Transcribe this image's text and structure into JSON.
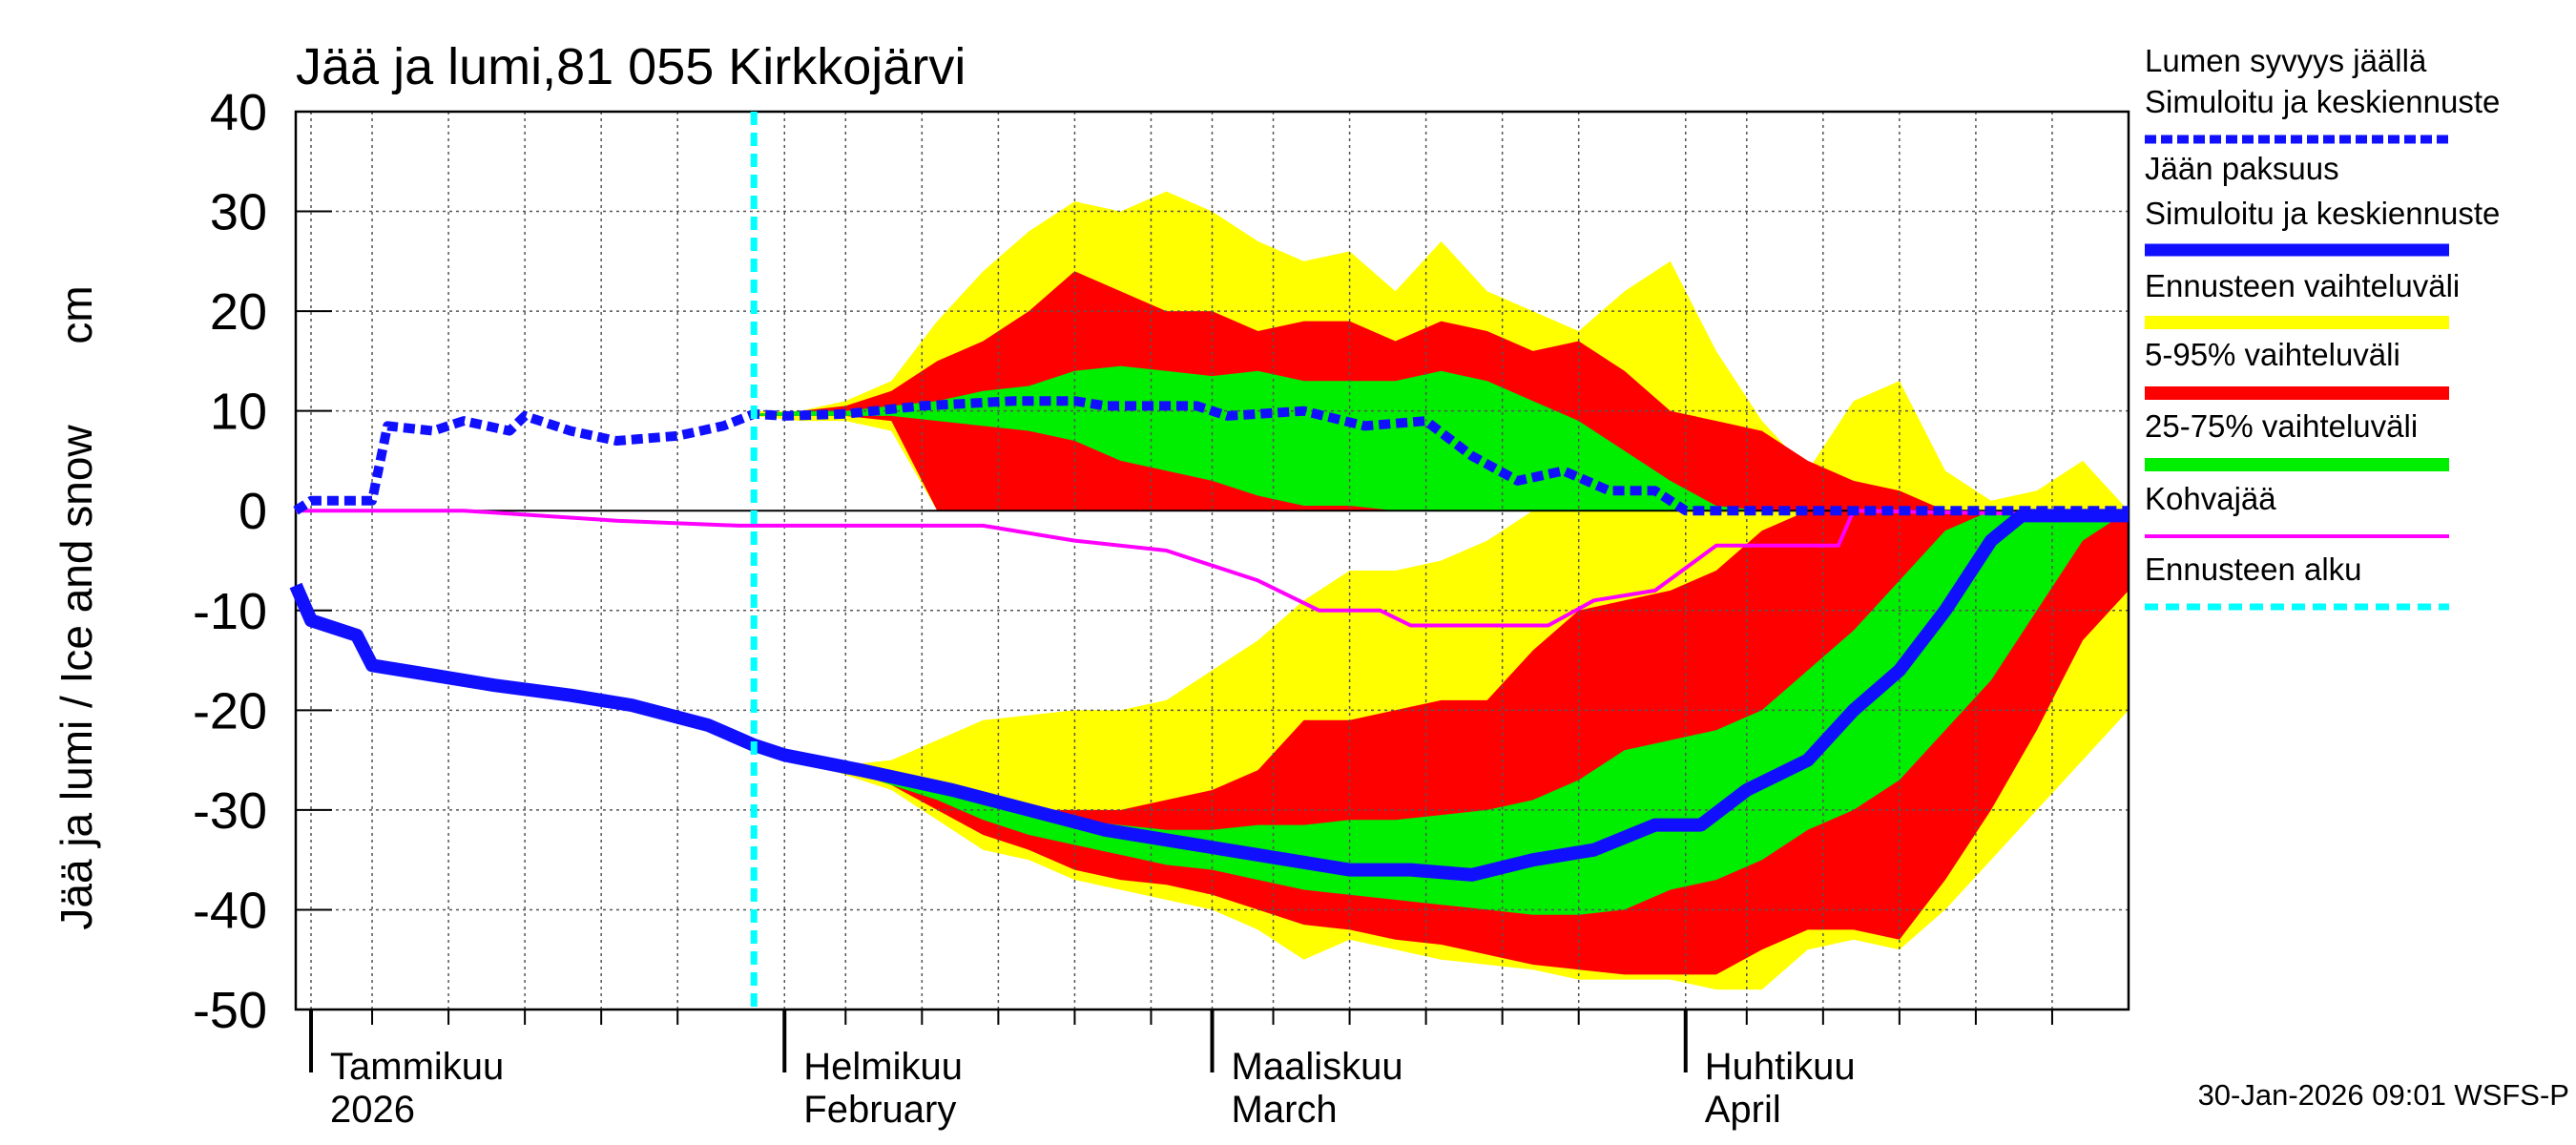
{
  "chart_data": {
    "type": "line",
    "title": "Jää ja lumi,81 055 Kirkkojärvi",
    "y_label": "Jää ja lumi / Ice and snow",
    "y_unit": "cm",
    "footer": "30-Jan-2026 09:01 WSFS-P",
    "xlim": [
      -1,
      119
    ],
    "xticks": [
      {
        "value": 0,
        "label": "Tammikuu",
        "sublabel": "2026"
      },
      {
        "value": 31,
        "label": "Helmikuu",
        "sublabel": "February"
      },
      {
        "value": 59,
        "label": "Maaliskuu",
        "sublabel": "March"
      },
      {
        "value": 90,
        "label": "Huhtikuu",
        "sublabel": "April"
      }
    ],
    "x_grid": [
      4,
      9,
      14,
      19,
      24,
      35,
      40,
      45,
      50,
      55,
      63,
      68,
      73,
      78,
      83,
      94,
      99,
      104,
      109,
      114
    ],
    "ylim": [
      -50,
      40
    ],
    "yticks": [
      -50,
      -40,
      -30,
      -20,
      -10,
      0,
      10,
      20,
      30,
      40
    ],
    "grid": true,
    "legend": "right",
    "lines": [
      {
        "name": "Lumen syvyys jäällä",
        "subname": "Simuloitu ja keskiennuste",
        "color": "#1010ff",
        "dashed": true,
        "x": [
          -1,
          0,
          4,
          5,
          8,
          10,
          13,
          14,
          17,
          20,
          24,
          27,
          29,
          31,
          35,
          40,
          46,
          50,
          52,
          58,
          60,
          65,
          69,
          73,
          76,
          79,
          82,
          85,
          88,
          90,
          95,
          100,
          105,
          110,
          115,
          119
        ],
        "values": [
          0,
          1,
          1,
          8.5,
          8,
          9,
          8,
          9.5,
          8,
          7,
          7.5,
          8.5,
          9.7,
          9.5,
          9.7,
          10.5,
          11,
          11,
          10.5,
          10.5,
          9.5,
          10,
          8.5,
          9,
          5.5,
          3,
          4,
          2,
          2,
          0,
          0,
          0,
          0,
          0,
          0,
          0
        ]
      },
      {
        "name": "Jään paksuus",
        "subname": "Simuloitu ja keskiennuste",
        "color": "#1010ff",
        "dashed": false,
        "x": [
          -1,
          0,
          3,
          4,
          8,
          12,
          17,
          21,
          26,
          29,
          31,
          36,
          42,
          47,
          52,
          58,
          64,
          68,
          72,
          76,
          80,
          84,
          88,
          91,
          94,
          98,
          101,
          104,
          107,
          110,
          112,
          115,
          119
        ],
        "values": [
          -7.5,
          -11,
          -12.5,
          -15.5,
          -16.5,
          -17.5,
          -18.5,
          -19.5,
          -21.5,
          -23.5,
          -24.5,
          -26,
          -28,
          -30,
          -32,
          -33.5,
          -35,
          -36,
          -36,
          -36.5,
          -35,
          -34,
          -31.5,
          -31.5,
          -28,
          -25,
          -20,
          -16,
          -10,
          -3,
          -0.5,
          -0.5,
          -0.5
        ]
      },
      {
        "name": "Kohvajää",
        "color": "#ff00ff",
        "dashed": false,
        "x": [
          -1,
          10,
          20,
          28,
          44,
          50,
          56,
          62,
          66,
          70,
          72,
          81,
          84,
          88,
          92,
          100,
          101,
          119
        ],
        "values": [
          0,
          0,
          -1,
          -1.5,
          -1.5,
          -3,
          -4,
          -7,
          -10,
          -10,
          -11.5,
          -11.5,
          -9,
          -8,
          -3.5,
          -3.5,
          0,
          -0.5
        ]
      }
    ],
    "bands": [
      {
        "name": "Ennusteen vaihteluväli",
        "color": "#ffff00",
        "x": [
          29,
          32,
          35,
          38,
          41,
          44,
          47,
          50,
          53,
          56,
          59,
          62,
          65,
          68,
          71,
          74,
          77,
          80,
          83,
          86,
          89,
          92,
          95,
          98,
          101,
          104,
          107,
          110,
          113,
          116,
          119
        ],
        "snow_high": [
          10,
          10,
          11,
          13,
          19,
          24,
          28,
          31,
          30,
          32,
          30,
          27,
          25,
          26,
          22,
          27,
          22,
          20,
          18,
          22,
          25,
          16,
          9,
          4,
          11,
          13,
          4,
          1,
          2,
          5,
          0
        ],
        "snow_low": [
          9.5,
          9,
          9,
          8,
          0,
          0,
          0,
          0,
          0,
          0,
          0,
          0,
          0,
          0,
          0,
          0,
          0,
          0,
          0,
          0,
          0,
          0,
          0,
          0,
          0,
          0,
          0,
          0,
          0,
          0,
          0
        ],
        "ice_high": [
          -23.5,
          -25,
          -25.5,
          -25,
          -23,
          -21,
          -20.5,
          -20,
          -20,
          -19,
          -16,
          -13,
          -9,
          -6,
          -6,
          -5,
          -3,
          0,
          0,
          0,
          0,
          0,
          0,
          0,
          0,
          0,
          0,
          0,
          0,
          0,
          0
        ],
        "ice_low": [
          -23.5,
          -25,
          -26.5,
          -28,
          -31,
          -34,
          -35,
          -37,
          -38,
          -39,
          -40,
          -42,
          -45,
          -43,
          -44,
          -45,
          -45.5,
          -46,
          -47,
          -47,
          -47,
          -48,
          -48,
          -44,
          -43,
          -44,
          -40,
          -35,
          -30,
          -25,
          -20
        ]
      },
      {
        "name": "5-95% vaihteluväli",
        "color": "#ff0000",
        "x": [
          29,
          32,
          35,
          38,
          41,
          44,
          47,
          50,
          53,
          56,
          59,
          62,
          65,
          68,
          71,
          74,
          77,
          80,
          83,
          86,
          89,
          92,
          95,
          98,
          101,
          104,
          107,
          110,
          113,
          116,
          119
        ],
        "snow_high": [
          9.7,
          10,
          10.5,
          12,
          15,
          17,
          20,
          24,
          22,
          20,
          20,
          18,
          19,
          19,
          17,
          19,
          18,
          16,
          17,
          14,
          10,
          9,
          8,
          5,
          3,
          2,
          0,
          0,
          0,
          0,
          0
        ],
        "snow_low": [
          9.5,
          9.5,
          9.5,
          9,
          0,
          0,
          0,
          0,
          0,
          0,
          0,
          0,
          0,
          0,
          0,
          0,
          0,
          0,
          0,
          0,
          0,
          0,
          0,
          0,
          0,
          0,
          0,
          0,
          0,
          0,
          0
        ],
        "ice_high": [
          -23.5,
          -25,
          -26,
          -27,
          -28,
          -29,
          -30,
          -30,
          -30,
          -29,
          -28,
          -26,
          -21,
          -21,
          -20,
          -19,
          -19,
          -14,
          -10,
          -9,
          -8,
          -6,
          -2,
          0,
          0,
          0,
          0,
          0,
          0,
          0,
          0
        ],
        "ice_low": [
          -23.5,
          -25,
          -26,
          -27.5,
          -30,
          -32.5,
          -34,
          -36,
          -37,
          -37.5,
          -38.5,
          -40,
          -41.5,
          -42,
          -43,
          -43.5,
          -44.5,
          -45.5,
          -46,
          -46.5,
          -46.5,
          -46.5,
          -44,
          -42,
          -42,
          -43,
          -37,
          -30,
          -22,
          -13,
          -8
        ]
      },
      {
        "name": "25-75% vaihteluväli",
        "color": "#00ee00",
        "x": [
          29,
          32,
          35,
          38,
          41,
          44,
          47,
          50,
          53,
          56,
          59,
          62,
          65,
          68,
          71,
          74,
          77,
          80,
          83,
          86,
          89,
          92,
          95,
          98,
          101,
          104,
          107,
          110,
          113,
          116,
          119
        ],
        "snow_high": [
          9.7,
          10,
          10,
          10.5,
          11,
          12,
          12.5,
          14,
          14.5,
          14,
          13.5,
          14,
          13,
          13,
          13,
          14,
          13,
          11,
          9,
          6,
          3,
          0.5,
          0,
          0,
          0,
          0,
          0,
          0,
          0,
          0,
          0
        ],
        "snow_low": [
          9.5,
          9.5,
          9.5,
          9.5,
          9,
          8.5,
          8,
          7,
          5,
          4,
          3,
          1.5,
          0.5,
          0.5,
          0,
          0,
          0,
          0,
          0,
          0,
          0,
          0,
          0,
          0,
          0,
          0,
          0,
          0,
          0,
          0,
          0
        ],
        "ice_high": [
          -23.5,
          -25,
          -26,
          -27,
          -28,
          -29.5,
          -30.5,
          -31,
          -31.5,
          -32,
          -32,
          -31.5,
          -31.5,
          -31,
          -31,
          -30.5,
          -30,
          -29,
          -27,
          -24,
          -23,
          -22,
          -20,
          -16,
          -12,
          -7,
          -2,
          0,
          0,
          0,
          0
        ],
        "ice_low": [
          -23.5,
          -25,
          -26,
          -27.5,
          -29,
          -31,
          -32.5,
          -33.5,
          -34.5,
          -35.5,
          -36,
          -37,
          -38,
          -38.5,
          -39,
          -39.5,
          -40,
          -40.5,
          -40.5,
          -40,
          -38,
          -37,
          -35,
          -32,
          -30,
          -27,
          -22,
          -17,
          -10,
          -3,
          0
        ]
      }
    ],
    "forecast_start": {
      "name": "Ennusteen alku",
      "value": 29,
      "color": "#00ffff"
    }
  }
}
